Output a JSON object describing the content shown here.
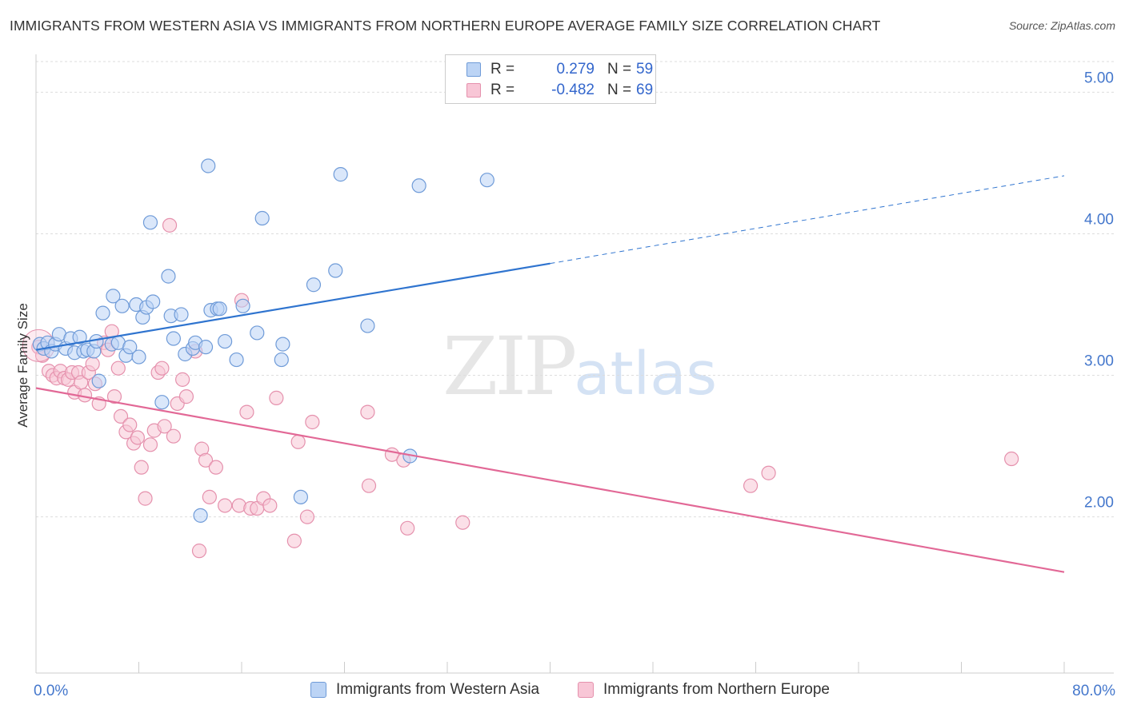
{
  "title": "IMMIGRANTS FROM WESTERN ASIA VS IMMIGRANTS FROM NORTHERN EUROPE AVERAGE FAMILY SIZE CORRELATION CHART",
  "source": "Source: ZipAtlas.com",
  "watermark": {
    "zip": "ZIP",
    "atlas": "atlas"
  },
  "colors": {
    "blue_fill": "#bcd4f5",
    "blue_stroke": "#6f9bd8",
    "blue_line": "#2f74cf",
    "pink_fill": "#f8c6d6",
    "pink_stroke": "#e591ad",
    "pink_line": "#e26896",
    "tick_text": "#4477cc",
    "grid": "#dddddd"
  },
  "legend": {
    "rows": [
      {
        "r_label": "R =",
        "r_value": "0.279",
        "n_label": "N =",
        "n_value": "59"
      },
      {
        "r_label": "R =",
        "r_value": "-0.482",
        "n_label": "N =",
        "n_value": "69"
      }
    ]
  },
  "chart_data": {
    "type": "scatter",
    "title": "IMMIGRANTS FROM WESTERN ASIA VS IMMIGRANTS FROM NORTHERN EUROPE AVERAGE FAMILY SIZE CORRELATION CHART",
    "xlabel": "",
    "ylabel": "Average Family Size",
    "xlim": [
      0,
      80
    ],
    "ylim": [
      1.1,
      5.2
    ],
    "x_tick_labels": [
      "0.0%",
      "80.0%"
    ],
    "x_ticks": [
      0,
      8,
      16,
      24,
      32,
      40,
      48,
      56,
      64,
      72,
      80
    ],
    "y_ticks": [
      2.0,
      3.0,
      4.0,
      5.0
    ],
    "y_tick_labels": [
      "2.00",
      "3.00",
      "4.00",
      "5.00"
    ],
    "grid": true,
    "legend_position": "top-center",
    "series": [
      {
        "name": "Immigrants from Western Asia",
        "color": "#6f9bd8",
        "r": 0.279,
        "n": 59,
        "trend": {
          "x0": 0,
          "y0": 3.18,
          "x1": 40,
          "y1": 3.79,
          "dashed_to_x": 80,
          "dashed_to_y": 4.41
        },
        "points": [
          [
            0.3,
            3.22
          ],
          [
            0.6,
            3.19
          ],
          [
            0.9,
            3.23
          ],
          [
            1.2,
            3.17
          ],
          [
            1.5,
            3.22
          ],
          [
            1.8,
            3.29
          ],
          [
            2.3,
            3.19
          ],
          [
            2.7,
            3.26
          ],
          [
            3.0,
            3.16
          ],
          [
            3.4,
            3.27
          ],
          [
            3.7,
            3.17
          ],
          [
            4.0,
            3.18
          ],
          [
            4.5,
            3.17
          ],
          [
            4.7,
            3.24
          ],
          [
            4.9,
            2.96
          ],
          [
            5.2,
            3.44
          ],
          [
            5.9,
            3.22
          ],
          [
            6.0,
            3.56
          ],
          [
            6.4,
            3.23
          ],
          [
            6.7,
            3.49
          ],
          [
            7.0,
            3.14
          ],
          [
            7.3,
            3.2
          ],
          [
            7.8,
            3.5
          ],
          [
            8.0,
            3.13
          ],
          [
            8.3,
            3.41
          ],
          [
            8.6,
            3.48
          ],
          [
            8.9,
            4.08
          ],
          [
            9.1,
            3.52
          ],
          [
            9.8,
            2.81
          ],
          [
            10.3,
            3.7
          ],
          [
            10.5,
            3.42
          ],
          [
            10.7,
            3.26
          ],
          [
            11.3,
            3.43
          ],
          [
            11.6,
            3.15
          ],
          [
            12.2,
            3.19
          ],
          [
            12.4,
            3.23
          ],
          [
            12.8,
            2.01
          ],
          [
            13.2,
            3.2
          ],
          [
            13.4,
            4.48
          ],
          [
            13.6,
            3.46
          ],
          [
            14.1,
            3.47
          ],
          [
            14.3,
            3.47
          ],
          [
            14.7,
            3.24
          ],
          [
            15.6,
            3.11
          ],
          [
            16.1,
            3.49
          ],
          [
            17.2,
            3.3
          ],
          [
            17.6,
            4.11
          ],
          [
            19.1,
            3.11
          ],
          [
            19.2,
            3.22
          ],
          [
            20.6,
            2.14
          ],
          [
            21.6,
            3.64
          ],
          [
            23.3,
            3.74
          ],
          [
            23.7,
            4.42
          ],
          [
            25.8,
            3.35
          ],
          [
            29.1,
            2.43
          ],
          [
            29.8,
            4.34
          ],
          [
            35.1,
            4.38
          ]
        ]
      },
      {
        "name": "Immigrants from Northern Europe",
        "color": "#e591ad",
        "r": -0.482,
        "n": 69,
        "trend": {
          "x0": 0,
          "y0": 2.91,
          "x1": 80,
          "y1": 1.61
        },
        "points": [
          [
            0.2,
            3.2
          ],
          [
            0.5,
            3.14
          ],
          [
            1.0,
            3.03
          ],
          [
            1.3,
            3.0
          ],
          [
            1.6,
            2.98
          ],
          [
            1.9,
            3.03
          ],
          [
            2.2,
            2.98
          ],
          [
            2.5,
            2.97
          ],
          [
            2.8,
            3.02
          ],
          [
            3.0,
            2.88
          ],
          [
            3.3,
            3.02
          ],
          [
            3.5,
            2.95
          ],
          [
            3.8,
            2.86
          ],
          [
            4.1,
            3.02
          ],
          [
            4.4,
            3.08
          ],
          [
            4.6,
            2.94
          ],
          [
            4.9,
            2.8
          ],
          [
            5.3,
            3.23
          ],
          [
            5.6,
            3.18
          ],
          [
            5.9,
            3.31
          ],
          [
            6.1,
            2.85
          ],
          [
            6.4,
            3.05
          ],
          [
            6.6,
            2.71
          ],
          [
            7.0,
            2.6
          ],
          [
            7.3,
            2.65
          ],
          [
            7.6,
            2.52
          ],
          [
            7.9,
            2.56
          ],
          [
            8.2,
            2.35
          ],
          [
            8.5,
            2.13
          ],
          [
            8.9,
            2.51
          ],
          [
            9.2,
            2.61
          ],
          [
            9.5,
            3.02
          ],
          [
            9.8,
            3.05
          ],
          [
            10.0,
            2.64
          ],
          [
            10.4,
            4.06
          ],
          [
            10.7,
            2.57
          ],
          [
            11.0,
            2.8
          ],
          [
            11.4,
            2.97
          ],
          [
            11.7,
            2.85
          ],
          [
            12.4,
            3.17
          ],
          [
            12.7,
            1.76
          ],
          [
            12.9,
            2.48
          ],
          [
            13.2,
            2.4
          ],
          [
            13.5,
            2.14
          ],
          [
            14.0,
            2.35
          ],
          [
            14.7,
            2.08
          ],
          [
            15.8,
            2.08
          ],
          [
            16.0,
            3.53
          ],
          [
            16.4,
            2.74
          ],
          [
            16.7,
            2.06
          ],
          [
            17.2,
            2.06
          ],
          [
            17.7,
            2.13
          ],
          [
            18.2,
            2.08
          ],
          [
            18.7,
            2.84
          ],
          [
            20.1,
            1.83
          ],
          [
            20.4,
            2.53
          ],
          [
            21.1,
            2.0
          ],
          [
            21.5,
            2.67
          ],
          [
            25.8,
            2.74
          ],
          [
            25.9,
            2.22
          ],
          [
            27.7,
            2.44
          ],
          [
            28.6,
            2.4
          ],
          [
            28.9,
            1.92
          ],
          [
            33.2,
            1.96
          ],
          [
            55.6,
            2.22
          ],
          [
            57.0,
            2.31
          ],
          [
            75.9,
            2.41
          ]
        ]
      }
    ]
  }
}
